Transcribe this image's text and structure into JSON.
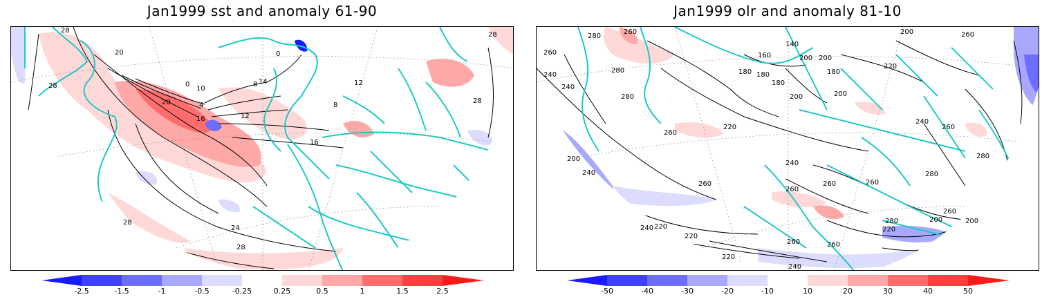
{
  "left_panel": {
    "title": "Jan1999 sst and anomaly 61-90",
    "contour_labels": [
      "28",
      "28",
      "20",
      "20",
      "0",
      "0",
      "10",
      "14",
      "8",
      "4",
      "16",
      "12",
      "8",
      "16",
      "12",
      "28",
      "24",
      "28",
      "28",
      "28"
    ],
    "colorbar_ticks": [
      "-2.5",
      "-1.5",
      "-1",
      "-0.5",
      "-0.25",
      "0.25",
      "0.5",
      "1",
      "1.5",
      "2.5"
    ]
  },
  "right_panel": {
    "title": "Jan1999 olr and anomaly 81-10",
    "contour_labels": [
      "280",
      "260",
      "260",
      "160",
      "140",
      "180",
      "180",
      "200",
      "200",
      "180",
      "180",
      "200",
      "260",
      "280",
      "240",
      "240",
      "280",
      "260",
      "220",
      "200",
      "200",
      "220",
      "240",
      "260",
      "280",
      "240",
      "260",
      "260",
      "260",
      "280",
      "200",
      "200",
      "240",
      "260",
      "220",
      "220",
      "220",
      "240",
      "240",
      "260",
      "260",
      "220",
      "280",
      "260",
      "200"
    ],
    "colorbar_ticks": [
      "-50",
      "-40",
      "-30",
      "-20",
      "-10",
      "10",
      "20",
      "30",
      "40",
      "50"
    ]
  },
  "colors": {
    "map_outline": "#1ec8c8",
    "contour": "#000000",
    "neg_strong": "#1a1aff",
    "neg_mid": "#6d6dff",
    "neg_light": "#a8a8ff",
    "neg_faint": "#dcdcff",
    "pos_faint": "#ffd8d8",
    "pos_light": "#ffa8a8",
    "pos_mid": "#ff6d6d",
    "pos_strong": "#ff2a2a"
  }
}
